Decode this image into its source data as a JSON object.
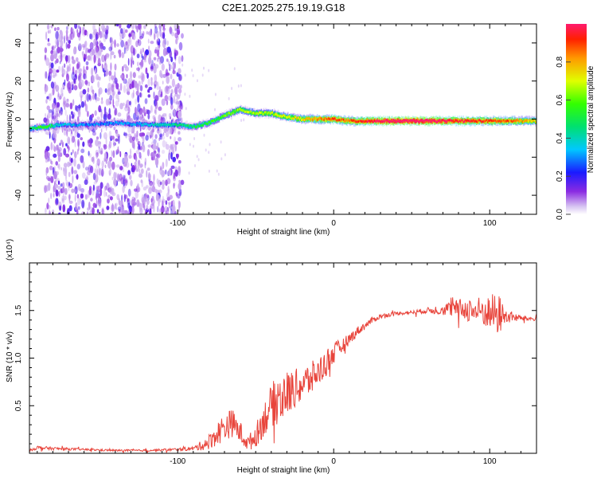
{
  "title": "C2E1.2025.275.19.19.G18",
  "chart_data": [
    {
      "type": "heatmap",
      "xlabel": "Height of straight line (km)",
      "ylabel": "Frequency (Hz)",
      "xlim": [
        -195,
        130
      ],
      "ylim": [
        -50,
        50
      ],
      "x_ticks": [
        -100,
        0,
        100
      ],
      "x_tick_labels": [
        "-100",
        "0",
        "100"
      ],
      "y_ticks": [
        -40,
        -20,
        0,
        20,
        40
      ],
      "y_tick_labels": [
        "-40",
        "-20",
        "0",
        "20",
        "40"
      ],
      "ridge": {
        "x": [
          -195,
          -185,
          -175,
          -160,
          -140,
          -120,
          -110,
          -100,
          -90,
          -80,
          -70,
          -60,
          -55,
          -50,
          -40,
          -30,
          -20,
          -10,
          0,
          10,
          20,
          40,
          60,
          80,
          100,
          115,
          130
        ],
        "freq": [
          -5,
          -4,
          -3,
          -3,
          -2,
          -3,
          -3,
          -3,
          -4,
          -2,
          2,
          5,
          4,
          3,
          3,
          1,
          0,
          0,
          0,
          -1,
          -1,
          -1,
          -1,
          -1,
          -1,
          -1,
          -1
        ],
        "amp": [
          0.4,
          0.5,
          0.3,
          0.25,
          0.25,
          0.3,
          0.35,
          0.4,
          0.45,
          0.5,
          0.55,
          0.6,
          0.6,
          0.6,
          0.62,
          0.65,
          0.7,
          0.78,
          0.85,
          0.8,
          0.9,
          1.0,
          1.0,
          0.9,
          0.85,
          0.8,
          0.7
        ]
      },
      "noise_region_km": [
        -185,
        -97
      ],
      "colorbar": {
        "label": "Normalized spectral amplitude",
        "range": [
          0,
          1
        ],
        "ticks": [
          0.0,
          0.2,
          0.4,
          0.6,
          0.8
        ],
        "tick_labels": [
          "0.0",
          "0.2",
          "0.4",
          "0.6",
          "0.8"
        ]
      }
    },
    {
      "type": "line",
      "xlabel": "Height of straight line (km)",
      "ylabel": "SNR (10 * v/v)",
      "multiplier": "(x10⁴)",
      "xlim": [
        -195,
        130
      ],
      "ylim": [
        0,
        2.0
      ],
      "x_ticks": [
        -100,
        0,
        100
      ],
      "x_tick_labels": [
        "-100",
        "0",
        "100"
      ],
      "y_ticks": [
        0.5,
        1.0,
        1.5
      ],
      "y_tick_labels": [
        "0.5",
        "1.0",
        "1.5"
      ],
      "color": "#e8453c",
      "series": [
        {
          "name": "SNR",
          "x": [
            -195,
            -190,
            -180,
            -160,
            -140,
            -120,
            -100,
            -90,
            -85,
            -80,
            -75,
            -70,
            -65,
            -60,
            -55,
            -50,
            -45,
            -40,
            -35,
            -30,
            -25,
            -20,
            -15,
            -10,
            -5,
            0,
            5,
            10,
            15,
            20,
            25,
            30,
            40,
            50,
            60,
            70,
            80,
            90,
            100,
            105,
            110,
            120,
            130
          ],
          "y": [
            0.03,
            0.06,
            0.05,
            0.04,
            0.03,
            0.03,
            0.04,
            0.05,
            0.08,
            0.12,
            0.2,
            0.28,
            0.32,
            0.22,
            0.1,
            0.18,
            0.35,
            0.5,
            0.58,
            0.62,
            0.68,
            0.72,
            0.78,
            0.85,
            0.95,
            1.05,
            1.12,
            1.2,
            1.28,
            1.34,
            1.4,
            1.44,
            1.47,
            1.48,
            1.5,
            1.51,
            1.52,
            1.5,
            1.48,
            1.46,
            1.44,
            1.42,
            1.41
          ],
          "jitter": [
            0.01,
            0.02,
            0.015,
            0.01,
            0.01,
            0.01,
            0.015,
            0.02,
            0.05,
            0.08,
            0.12,
            0.15,
            0.15,
            0.12,
            0.08,
            0.12,
            0.18,
            0.22,
            0.28,
            0.25,
            0.2,
            0.2,
            0.18,
            0.15,
            0.15,
            0.12,
            0.08,
            0.06,
            0.05,
            0.04,
            0.03,
            0.025,
            0.02,
            0.02,
            0.03,
            0.06,
            0.1,
            0.14,
            0.18,
            0.25,
            0.08,
            0.03,
            0.02
          ]
        }
      ]
    }
  ]
}
